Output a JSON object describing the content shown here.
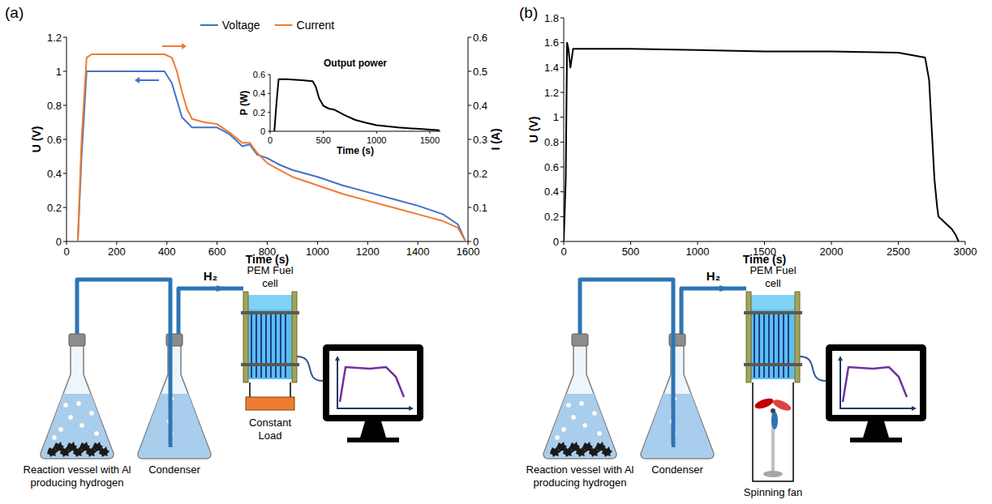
{
  "panels": [
    {
      "label": "(a)"
    },
    {
      "label": "(b)"
    }
  ],
  "chart_data": [
    {
      "type": "line",
      "x_label": "Time (s)",
      "y_label": "U (V)",
      "y2_label": "I (A)",
      "x": [
        45,
        60,
        80,
        100,
        200,
        300,
        390,
        420,
        440,
        460,
        480,
        500,
        550,
        600,
        650,
        700,
        730,
        760,
        800,
        850,
        900,
        1000,
        1100,
        1200,
        1300,
        1400,
        1500,
        1560,
        1590
      ],
      "xlim": [
        0,
        1600
      ],
      "xticks": [
        0,
        200,
        400,
        600,
        800,
        1000,
        1200,
        1400,
        1600
      ],
      "ylim": [
        0,
        1.2
      ],
      "yticks": [
        0,
        0.2,
        0.4,
        0.6,
        0.8,
        1,
        1.2
      ],
      "y2lim": [
        0,
        0.6
      ],
      "y2ticks": [
        0,
        0.1,
        0.2,
        0.3,
        0.4,
        0.5,
        0.6
      ],
      "series": [
        {
          "name": "Voltage",
          "color": "#4472c4",
          "values": [
            0,
            0.5,
            1,
            1,
            1,
            1,
            1,
            0.93,
            0.83,
            0.73,
            0.7,
            0.67,
            0.67,
            0.67,
            0.63,
            0.56,
            0.57,
            0.51,
            0.49,
            0.45,
            0.42,
            0.38,
            0.33,
            0.29,
            0.25,
            0.21,
            0.16,
            0.1,
            0
          ]
        },
        {
          "name": "Current",
          "color": "#ed7d31",
          "axis": "y2",
          "values": [
            0,
            0.3,
            0.54,
            0.55,
            0.55,
            0.55,
            0.55,
            0.54,
            0.5,
            0.44,
            0.39,
            0.36,
            0.35,
            0.345,
            0.32,
            0.29,
            0.29,
            0.26,
            0.23,
            0.21,
            0.19,
            0.165,
            0.14,
            0.12,
            0.1,
            0.08,
            0.06,
            0.04,
            0
          ]
        }
      ],
      "legend": "top",
      "grid": false
    },
    {
      "type": "line",
      "title": "Output power",
      "x_label": "Time (s)",
      "y_label": "P (W)",
      "x": [
        40,
        60,
        80,
        150,
        300,
        400,
        430,
        460,
        500,
        550,
        600,
        700,
        800,
        900,
        1000,
        1200,
        1400,
        1590
      ],
      "xlim": [
        0,
        1600
      ],
      "xticks": [
        0,
        500,
        1000,
        1500
      ],
      "ylim": [
        0,
        0.6
      ],
      "yticks": [
        0,
        0.2,
        0.4,
        0.6
      ],
      "series": [
        {
          "color": "#000000",
          "values": [
            0,
            0.3,
            0.55,
            0.55,
            0.54,
            0.53,
            0.47,
            0.35,
            0.27,
            0.24,
            0.23,
            0.17,
            0.12,
            0.09,
            0.065,
            0.04,
            0.025,
            0.01
          ]
        }
      ],
      "grid": false
    },
    {
      "type": "line",
      "x_label": "Time (s)",
      "y_label": "U (V)",
      "x": [
        0,
        15,
        25,
        35,
        50,
        70,
        100,
        500,
        1000,
        1500,
        2000,
        2500,
        2600,
        2700,
        2730,
        2750,
        2770,
        2790,
        2800,
        2850,
        2900,
        2930,
        2950
      ],
      "xlim": [
        0,
        3000
      ],
      "xticks": [
        0,
        500,
        1000,
        1500,
        2000,
        2500,
        3000
      ],
      "ylim": [
        0,
        1.8
      ],
      "yticks": [
        0,
        0.2,
        0.4,
        0.6,
        0.8,
        1,
        1.2,
        1.4,
        1.6,
        1.8
      ],
      "series": [
        {
          "color": "#000000",
          "values": [
            0,
            0.5,
            1.6,
            1.55,
            1.4,
            1.55,
            1.55,
            1.55,
            1.54,
            1.53,
            1.53,
            1.52,
            1.5,
            1.48,
            1.3,
            0.9,
            0.5,
            0.28,
            0.2,
            0.15,
            0.1,
            0.05,
            0
          ]
        }
      ],
      "grid": false
    }
  ],
  "diagrams": [
    {
      "vessel": "Reaction vessel with Al producing hydrogen",
      "condenser": "Condenser",
      "gas": "H₂",
      "cell": "PEM Fuel cell",
      "load": "Constant Load"
    },
    {
      "vessel": "Reaction vessel with Al producing hydrogen",
      "condenser": "Condenser",
      "gas": "H₂",
      "cell": "PEM Fuel cell",
      "fan": "Spinning fan"
    }
  ]
}
